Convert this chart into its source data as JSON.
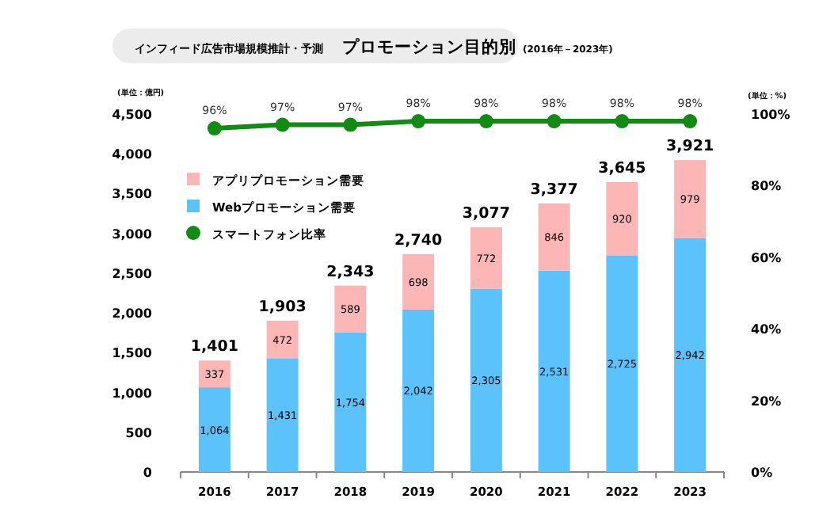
{
  "chart_data": {
    "type": "bar",
    "stacked": true,
    "title": "インフィード広告市場規模推計・予測",
    "subtitle": "プロモーション目的別",
    "annotations": [
      "(2016年－2023年)"
    ],
    "ylabel": "(単位：億円)",
    "y2label": "(単位：%)",
    "categories": [
      "2016",
      "2017",
      "2018",
      "2019",
      "2020",
      "2021",
      "2022",
      "2023"
    ],
    "series": [
      {
        "name": "Webプロモーション需要",
        "color": "#5bc2fb",
        "values": [
          1064,
          1431,
          1754,
          2042,
          2305,
          2531,
          2725,
          2942
        ],
        "value_labels": [
          "1,064",
          "1,431",
          "1,754",
          "2,042",
          "2,305",
          "2,531",
          "2,725",
          "2,942"
        ]
      },
      {
        "name": "アプリプロモーション需要",
        "color": "#fcb6b6",
        "values": [
          337,
          472,
          589,
          698,
          772,
          846,
          920,
          979
        ],
        "value_labels": [
          "337",
          "472",
          "589",
          "698",
          "772",
          "846",
          "920",
          "979"
        ]
      },
      {
        "name": "スマートフォン比率",
        "type": "line",
        "axis": "y2",
        "color": "#138a13",
        "marker": "circle",
        "values": [
          96,
          97,
          97,
          98,
          98,
          98,
          98,
          98
        ],
        "value_labels": [
          "96%",
          "97%",
          "97%",
          "98%",
          "98%",
          "98%",
          "98%",
          "98%"
        ]
      }
    ],
    "totals": [
      "1,401",
      "1,903",
      "2,343",
      "2,740",
      "3,077",
      "3,377",
      "3,645",
      "3,921"
    ],
    "ylim": [
      0,
      4500
    ],
    "yticks": [
      0,
      500,
      {
        "value": 1000,
        "label": "1,000"
      },
      {
        "value": 1500,
        "label": "1,500"
      },
      {
        "value": 2000,
        "label": "2,000"
      },
      {
        "value": 2500,
        "label": "2,500"
      },
      {
        "value": 3000,
        "label": "3,000"
      },
      {
        "value": 3500,
        "label": "3,500"
      },
      {
        "value": 4000,
        "label": "4,000"
      },
      {
        "value": 4500,
        "label": "4,500"
      }
    ],
    "y2lim": [
      0,
      100
    ],
    "y2ticks": [
      {
        "value": 0,
        "label": "0%"
      },
      {
        "value": 20,
        "label": "20%"
      },
      {
        "value": 40,
        "label": "40%"
      },
      {
        "value": 60,
        "label": "60%"
      },
      {
        "value": 80,
        "label": "80%"
      },
      {
        "value": 100,
        "label": "100%"
      }
    ],
    "legend": "top left",
    "grid": false
  }
}
